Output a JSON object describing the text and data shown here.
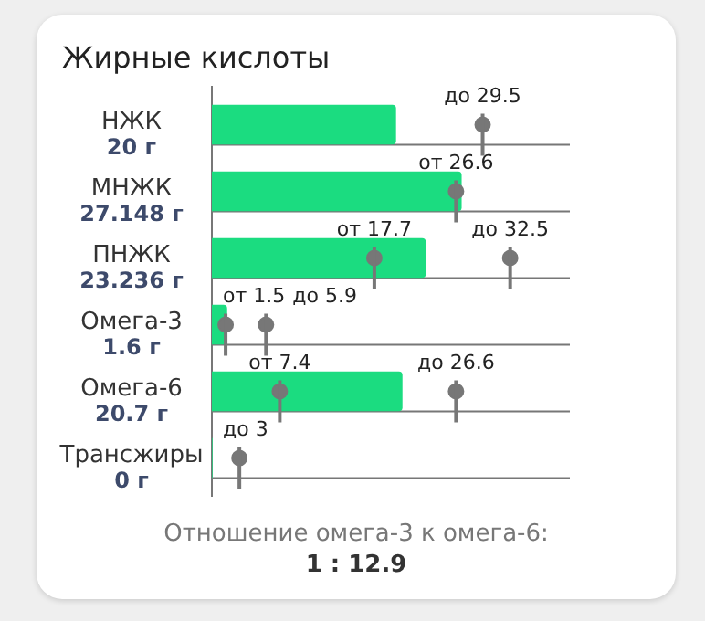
{
  "chart_data": {
    "type": "bar",
    "orientation": "horizontal",
    "title": "Жирные кислоты",
    "grid": "y",
    "marker": "circle",
    "categories": [
      "НЖК",
      "МНЖК",
      "ПНЖК",
      "Омега-3",
      "Омега-6",
      "Трансжиры"
    ],
    "series": [
      {
        "color": "#1bdc80",
        "values": [
          20,
          27.148,
          23.236,
          1.6,
          20.7,
          0
        ],
        "value_labels": [
          "20 г",
          "27.148 г",
          "23.236 г",
          "1.6 г",
          "20.7 г",
          "0 г"
        ]
      },
      {
        "type": "scatter",
        "color": "#777777",
        "values": [
          null,
          26.6,
          17.7,
          1.5,
          7.4,
          null
        ],
        "value_labels": [
          null,
          "от 26.6",
          "от 17.7",
          "от 1.5",
          "от 7.4",
          null
        ]
      },
      {
        "type": "scatter",
        "color": "#777777",
        "values": [
          29.5,
          null,
          32.5,
          5.9,
          26.6,
          3
        ],
        "value_labels": [
          "до 29.5",
          null,
          "до 32.5",
          "до 5.9",
          "до 26.6",
          "до 3"
        ]
      }
    ],
    "annotations": [
      "Отношение омега-3 к омега-6:",
      "1 : 12.9"
    ]
  }
}
